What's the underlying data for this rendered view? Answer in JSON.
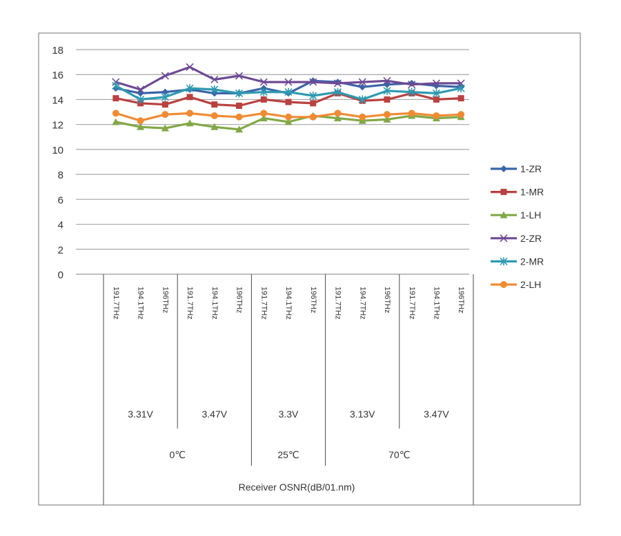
{
  "chart_data": {
    "type": "line",
    "title": "",
    "ylim": [
      0,
      18
    ],
    "yticks": [
      "0",
      "2",
      "4",
      "6",
      "8",
      "10",
      "12",
      "14",
      "16",
      "18"
    ],
    "grid": true,
    "legend_position": "right",
    "x_level_frequency": [
      "191.7THz",
      "194.1THz",
      "196THz",
      "191.7THz",
      "194.1THz",
      "196THz",
      "191.7THz",
      "194.1THz",
      "196THz",
      "191.7THz",
      "194.7THz",
      "196THz",
      "191.7THz",
      "194.1THz",
      "196THz"
    ],
    "x_level_voltage": [
      "3.31V",
      "3.47V",
      "3.3V",
      "3.13V",
      "3.47V"
    ],
    "x_level_temperature": [
      "0℃",
      "25℃",
      "70℃"
    ],
    "xlabel": "Receiver OSNR(dB/01.nm)",
    "series": [
      {
        "name": "1-ZR",
        "color": "#3a64a8",
        "marker": "diamond",
        "values": [
          14.9,
          14.5,
          14.6,
          14.8,
          14.5,
          14.5,
          14.9,
          14.5,
          15.5,
          15.4,
          15.0,
          15.2,
          15.3,
          15.1,
          15.0
        ]
      },
      {
        "name": "1-MR",
        "color": "#b94140",
        "marker": "square",
        "values": [
          14.1,
          13.7,
          13.6,
          14.2,
          13.6,
          13.5,
          14.0,
          13.8,
          13.7,
          14.5,
          13.9,
          14.0,
          14.5,
          14.0,
          14.1
        ]
      },
      {
        "name": "1-LH",
        "color": "#82a847",
        "marker": "triangle",
        "values": [
          12.2,
          11.8,
          11.7,
          12.1,
          11.8,
          11.6,
          12.5,
          12.2,
          12.7,
          12.5,
          12.3,
          12.4,
          12.7,
          12.5,
          12.6
        ]
      },
      {
        "name": "2-ZR",
        "color": "#6e4a94",
        "marker": "x",
        "values": [
          15.4,
          14.8,
          15.9,
          16.6,
          15.6,
          15.9,
          15.4,
          15.4,
          15.4,
          15.3,
          15.4,
          15.5,
          15.2,
          15.3,
          15.3
        ]
      },
      {
        "name": "2-MR",
        "color": "#2e9ab1",
        "marker": "star",
        "values": [
          15.1,
          14.0,
          14.2,
          14.9,
          14.8,
          14.5,
          14.6,
          14.6,
          14.3,
          14.6,
          14.0,
          14.7,
          14.6,
          14.5,
          14.9
        ]
      },
      {
        "name": "2-LH",
        "color": "#f08b33",
        "marker": "circle",
        "values": [
          12.9,
          12.3,
          12.8,
          12.9,
          12.7,
          12.6,
          12.9,
          12.6,
          12.6,
          12.9,
          12.6,
          12.8,
          12.9,
          12.7,
          12.8
        ]
      }
    ]
  }
}
